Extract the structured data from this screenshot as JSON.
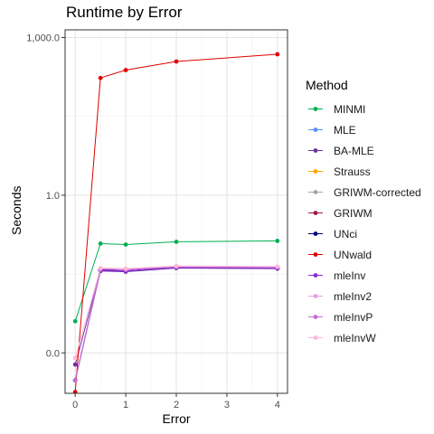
{
  "chart_data": {
    "type": "line",
    "title": "Runtime by Error",
    "xlabel": "Error",
    "ylabel": "Seconds",
    "x": [
      0,
      0.5,
      1,
      2,
      4
    ],
    "xlim": [
      -0.2,
      4.2
    ],
    "x_ticks": [
      0,
      1,
      2,
      3,
      4
    ],
    "x_tick_labels": [
      "0",
      "1",
      "2",
      "3",
      "4"
    ],
    "y_scale": "log10",
    "ylim": [
      0.00017,
      1400
    ],
    "y_ticks": [
      0.001,
      1,
      1000
    ],
    "y_tick_labels": [
      "0.0",
      "1.0",
      "1,000.0"
    ],
    "grid": true,
    "legend_position": "right",
    "legend_title": "Method",
    "series": [
      {
        "name": "MINMI",
        "color": "#00b050",
        "values": [
          0.004,
          0.12,
          0.115,
          0.13,
          0.135
        ]
      },
      {
        "name": "MLE",
        "color": "#5b8ff9",
        "values": [
          0.0003,
          0.038,
          0.036,
          0.042,
          0.041
        ]
      },
      {
        "name": "BA-MLE",
        "color": "#7030a0",
        "values": [
          0.0006,
          0.036,
          0.035,
          0.041,
          0.04
        ]
      },
      {
        "name": "Strauss",
        "color": "#ffa500",
        "values": [
          0.0003,
          0.038,
          0.036,
          0.042,
          0.041
        ]
      },
      {
        "name": "GRIWM-corrected",
        "color": "#a6a6a6",
        "values": [
          0.0003,
          0.038,
          0.036,
          0.042,
          0.041
        ]
      },
      {
        "name": "GRIWM",
        "color": "#9e1a4a",
        "values": [
          0.0003,
          0.038,
          0.036,
          0.042,
          0.041
        ]
      },
      {
        "name": "UNci",
        "color": "#000080",
        "values": [
          0.0003,
          0.038,
          0.036,
          0.042,
          0.041
        ]
      },
      {
        "name": "UNwald",
        "color": "#e00000",
        "values": [
          0.00018,
          170,
          240,
          350,
          480
        ]
      },
      {
        "name": "mleInv",
        "color": "#8a2be2",
        "values": [
          0.0003,
          0.037,
          0.036,
          0.042,
          0.041
        ]
      },
      {
        "name": "mleInv2",
        "color": "#e8a0e0",
        "values": [
          0.0003,
          0.04,
          0.039,
          0.044,
          0.043
        ]
      },
      {
        "name": "mleInvP",
        "color": "#c86ad8",
        "values": [
          0.0003,
          0.039,
          0.038,
          0.043,
          0.042
        ]
      },
      {
        "name": "mleInvW",
        "color": "#ffb6d9",
        "values": [
          0.0008,
          0.041,
          0.04,
          0.045,
          0.044
        ]
      }
    ]
  }
}
